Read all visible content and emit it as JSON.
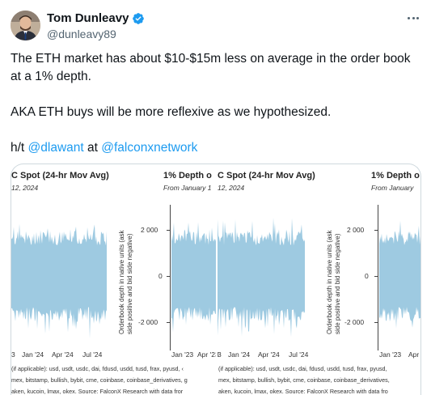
{
  "tweet": {
    "author": {
      "display_name": "Tom Dunleavy",
      "handle": "@dunleavy89",
      "verified": true,
      "avatar_icon": "avatar-photo"
    },
    "text": {
      "line1": "The ETH market has about $10-$15m less on average in the order book at a 1% depth.",
      "line2": "AKA ETH buys will be more reflexive as we hypothesized.",
      "ht_prefix": "h/t ",
      "mention1": "@dlawant",
      "at_word": " at ",
      "mention2": "@falconxnetwork"
    },
    "accent_color": "#1d9bf0"
  },
  "media": {
    "panel_a": {
      "title": "C Spot (24-hr Mov Avg)",
      "subtitle": "12, 2024",
      "x_ticks": [
        "3",
        "Jan '24",
        "Apr '24",
        "Jul '24"
      ],
      "foot1": "(if applicable): usd, usdt, usdc, dai, fdusd, usdd, tusd, frax, pyusd, ‹",
      "foot2": "mex, bitstamp, bullish, bybit, cme, coinbase, coinbase_derivatives, g",
      "foot3": "aken, kucoin, lmax, okex. Source: FalconX Research with data fror"
    },
    "panel_b": {
      "title": "1% Depth o",
      "subtitle": "From January 1",
      "y_label_1": "Orderbook depth in native units (ask",
      "y_label_2": "side positive and bid side negative)",
      "y_ticks": [
        "2 000",
        "0",
        "-2 000"
      ],
      "x_ticks": [
        "Jan '23",
        "Apr '23"
      ]
    },
    "panel_c": {
      "title": "C Spot (24-hr Mov Avg)",
      "subtitle": "12, 2024",
      "x_ticks": [
        "3",
        "Jan '24",
        "Apr '24",
        "Jul '24"
      ],
      "foot1": "(if applicable): usd, usdt, usdc, dai, fdusd, usdd, tusd, frax, pyusd, ‹",
      "foot2": "mex, bitstamp, bullish, bybit, cme, coinbase, coinbase_derivatives, g",
      "foot3": "aken, kucoin, lmax, okex. Source: FalconX Research with data fror"
    },
    "panel_d": {
      "title": "1% Depth o",
      "subtitle": "From January",
      "y_label_1": "Orderbook depth in native units (ask",
      "y_label_2": "side positive and bid side negative)",
      "y_ticks": [
        "2 000",
        "0",
        "-2 000"
      ],
      "x_ticks": [
        "Jan '23",
        "Apr '2"
      ],
      "foot1": "(if applicable): usd, usdt, usdc, dai, fdusd, usdd, tusd, frax, pyusd,",
      "foot2": "mex, bitstamp, bullish, bybit, cme, coinbase, coinbase_derivatives,",
      "foot3": "aken, kucoin, lmax, okex. Source: FalconX Research with data fro"
    },
    "series_color": "#9ecae1"
  }
}
